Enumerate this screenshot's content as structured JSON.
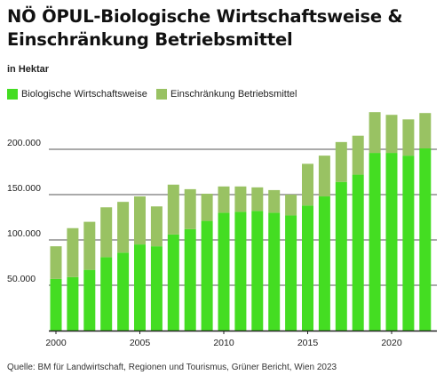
{
  "title": "NÖ ÖPUL-Biologische Wirtschaftsweise & Einschränkung Betriebsmittel",
  "unit_label": "in Hektar",
  "source": "Quelle: BM für Landwirtschaft, Regionen und Tourismus, Grüner Bericht, Wien 2023",
  "colors": {
    "bio": "#44dd22",
    "einschraenkung": "#99c263",
    "grid": "#555555",
    "axis": "#222222"
  },
  "chart_data": {
    "type": "bar",
    "stacked": true,
    "title": "NÖ ÖPUL-Biologische Wirtschaftsweise & Einschränkung Betriebsmittel",
    "ylabel": "in Hektar",
    "ylim": [
      0,
      250000
    ],
    "yticks": [
      {
        "value": 50000,
        "label": "50.000"
      },
      {
        "value": 100000,
        "label": "100.000"
      },
      {
        "value": 150000,
        "label": "150.000"
      },
      {
        "value": 200000,
        "label": "200.000"
      }
    ],
    "xticks": [
      {
        "value": 2000,
        "label": "2000"
      },
      {
        "value": 2005,
        "label": "2005"
      },
      {
        "value": 2010,
        "label": "2010"
      },
      {
        "value": 2015,
        "label": "2015"
      },
      {
        "value": 2020,
        "label": "2020"
      }
    ],
    "grid": true,
    "legend_position": "top-left",
    "categories": [
      2000,
      2001,
      2002,
      2003,
      2004,
      2005,
      2006,
      2007,
      2008,
      2009,
      2010,
      2011,
      2012,
      2013,
      2014,
      2015,
      2016,
      2017,
      2018,
      2019,
      2020,
      2021,
      2022
    ],
    "series": [
      {
        "name": "Biologische Wirtschaftsweise",
        "values": [
          57000,
          59000,
          67000,
          81000,
          86000,
          95000,
          93000,
          106000,
          112000,
          121000,
          130000,
          131000,
          132000,
          130000,
          127000,
          138000,
          148000,
          164000,
          172000,
          196000,
          196000,
          193000,
          201000
        ]
      },
      {
        "name": "Einschränkung Betriebsmittel",
        "values": [
          36000,
          54000,
          53000,
          55000,
          56000,
          53000,
          44000,
          55000,
          44000,
          30000,
          29000,
          28000,
          26000,
          25000,
          23000,
          46000,
          45000,
          44000,
          43000,
          45000,
          42000,
          40000,
          39000
        ]
      }
    ]
  }
}
